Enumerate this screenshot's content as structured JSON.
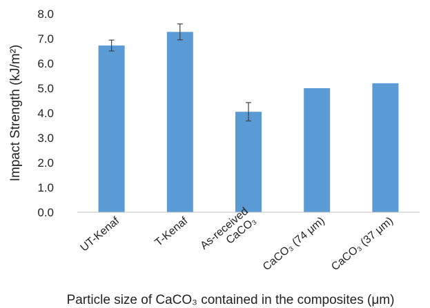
{
  "chart_data": {
    "type": "bar",
    "ylabel": "Impact Strength (kJ/m²)",
    "xlabel": "Particle size of CaCO₃ contained in the composites (μm)",
    "categories": [
      "UT-Kenaf",
      "T-Kenaf",
      "As-received CaCO₃",
      "CaCO₃ (74 μm)",
      "CaCO₃ (37 μm)"
    ],
    "category_lines": [
      [
        "UT-Kenaf"
      ],
      [
        "T-Kenaf"
      ],
      [
        "As-received",
        "CaCO₃"
      ],
      [
        "CaCO₃ (74 μm)"
      ],
      [
        "CaCO₃ (37 μm)"
      ]
    ],
    "values": [
      6.72,
      7.27,
      4.05,
      5.0,
      5.2
    ],
    "errors": [
      0.22,
      0.32,
      0.37,
      null,
      null
    ],
    "ylim": [
      0,
      8
    ],
    "yticks": [
      "0.0",
      "1.0",
      "2.0",
      "3.0",
      "4.0",
      "5.0",
      "6.0",
      "7.0",
      "8.0"
    ],
    "grid": false,
    "legend": "none",
    "bar_color": "#5B9BD5",
    "error_bar_color": "#404040"
  }
}
